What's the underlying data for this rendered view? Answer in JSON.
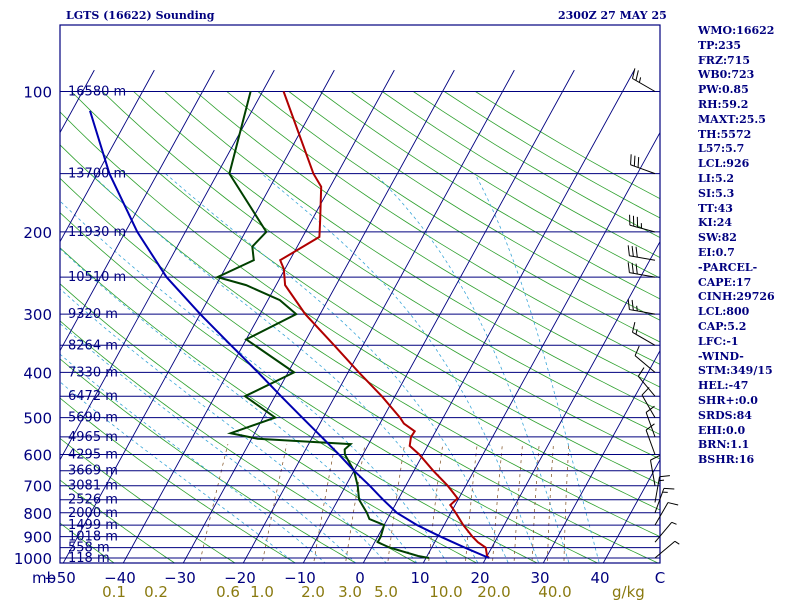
{
  "header": {
    "station": "LGTS (16622) Sounding",
    "time": "2300Z 27 MAY 25"
  },
  "indices": [
    "WMO:16622",
    "TP:235",
    "FRZ:715",
    "WB0:723",
    "PW:0.85",
    "RH:59.2",
    "MAXT:25.5",
    "TH:5572",
    "L57:5.7",
    "LCL:926",
    "LI:5.2",
    "SI:5.3",
    "TT:43",
    "KI:24",
    "SW:82",
    "EI:0.7",
    "-PARCEL-",
    "CAPE:17",
    "CINH:29726",
    "LCL:800",
    "CAP:5.2",
    "LFC:-1",
    "-WIND-",
    "STM:349/15",
    "HEL:-47",
    "SHR+:0.0",
    "SRDS:84",
    "EHI:0.0",
    "BRN:1.1",
    "BSHR:16"
  ],
  "chart_data": {
    "type": "line",
    "chart_kind": "skew-T log-P sounding",
    "y_scale": "log",
    "ylim": [
      1000,
      100
    ],
    "xlim": [
      -50,
      50
    ],
    "xlabel_unit": "mb",
    "pressure_ticks": [
      "100",
      "200",
      "300",
      "400",
      "500",
      "600",
      "700",
      "800",
      "900",
      "1000"
    ],
    "temperature_ticks": [
      "−50",
      "−40",
      "−30",
      "−20",
      "−10",
      "0",
      "10",
      "20",
      "30",
      "40",
      "C"
    ],
    "mixing_ratio_ticks": [
      "0.1",
      "0.2",
      "0.6",
      "1.0",
      "2.0",
      "3.0",
      "5.0",
      "10.0",
      "20.0",
      "40.0"
    ],
    "mixing_ratio_unit": "g/kg",
    "height_labels": [
      {
        "p": 100,
        "label": "16580 m"
      },
      {
        "p": 150,
        "label": "13700 m"
      },
      {
        "p": 200,
        "label": "11930 m"
      },
      {
        "p": 250,
        "label": "10510 m"
      },
      {
        "p": 300,
        "label": "9320 m"
      },
      {
        "p": 350,
        "label": "8264 m"
      },
      {
        "p": 400,
        "label": "7330 m"
      },
      {
        "p": 450,
        "label": "6472 m"
      },
      {
        "p": 500,
        "label": "5690 m"
      },
      {
        "p": 550,
        "label": "4965 m"
      },
      {
        "p": 600,
        "label": "4295 m"
      },
      {
        "p": 650,
        "label": "3669 m"
      },
      {
        "p": 700,
        "label": "3081 m"
      },
      {
        "p": 750,
        "label": "2526 m"
      },
      {
        "p": 800,
        "label": "2000 m"
      },
      {
        "p": 850,
        "label": "1499 m"
      },
      {
        "p": 900,
        "label": "1018 m"
      },
      {
        "p": 950,
        "label": "558 m"
      },
      {
        "p": 1000,
        "label": "118 m"
      }
    ],
    "series": [
      {
        "role": "temperature",
        "color": "#b00000",
        "points": [
          {
            "p": 1000,
            "t": 20.5
          },
          {
            "p": 990,
            "t": 20.0
          },
          {
            "p": 950,
            "t": 19.0
          },
          {
            "p": 925,
            "t": 17.2
          },
          {
            "p": 900,
            "t": 15.8
          },
          {
            "p": 850,
            "t": 13.2
          },
          {
            "p": 800,
            "t": 10.8
          },
          {
            "p": 770,
            "t": 9.2
          },
          {
            "p": 745,
            "t": 9.8
          },
          {
            "p": 700,
            "t": 7.0
          },
          {
            "p": 650,
            "t": 3.2
          },
          {
            "p": 600,
            "t": -0.6
          },
          {
            "p": 575,
            "t": -3.0
          },
          {
            "p": 550,
            "t": -3.6
          },
          {
            "p": 535,
            "t": -3.5
          },
          {
            "p": 515,
            "t": -6.0
          },
          {
            "p": 500,
            "t": -7.2
          },
          {
            "p": 450,
            "t": -12.2
          },
          {
            "p": 400,
            "t": -18.2
          },
          {
            "p": 350,
            "t": -24.8
          },
          {
            "p": 300,
            "t": -32.5
          },
          {
            "p": 260,
            "t": -38.5
          },
          {
            "p": 240,
            "t": -40.2
          },
          {
            "p": 230,
            "t": -41.6
          },
          {
            "p": 205,
            "t": -37.2
          },
          {
            "p": 190,
            "t": -38.5
          },
          {
            "p": 160,
            "t": -41.5
          },
          {
            "p": 150,
            "t": -44.0
          },
          {
            "p": 100,
            "t": -56.5
          }
        ]
      },
      {
        "role": "dewpoint",
        "color": "#004000",
        "points": [
          {
            "p": 1000,
            "t": 10.5
          },
          {
            "p": 990,
            "t": 8.5
          },
          {
            "p": 950,
            "t": 3.0
          },
          {
            "p": 925,
            "t": 0.5
          },
          {
            "p": 900,
            "t": 0.5
          },
          {
            "p": 850,
            "t": 0.0
          },
          {
            "p": 825,
            "t": -3.0
          },
          {
            "p": 800,
            "t": -4.0
          },
          {
            "p": 750,
            "t": -6.5
          },
          {
            "p": 700,
            "t": -8.0
          },
          {
            "p": 650,
            "t": -10.0
          },
          {
            "p": 600,
            "t": -13.0
          },
          {
            "p": 585,
            "t": -13.5
          },
          {
            "p": 570,
            "t": -13.0
          },
          {
            "p": 555,
            "t": -29.0
          },
          {
            "p": 540,
            "t": -34.0
          },
          {
            "p": 500,
            "t": -28.0
          },
          {
            "p": 450,
            "t": -35.0
          },
          {
            "p": 400,
            "t": -29.0
          },
          {
            "p": 340,
            "t": -40.0
          },
          {
            "p": 300,
            "t": -34.0
          },
          {
            "p": 280,
            "t": -38.0
          },
          {
            "p": 260,
            "t": -45.0
          },
          {
            "p": 250,
            "t": -50.5
          },
          {
            "p": 230,
            "t": -46.0
          },
          {
            "p": 215,
            "t": -47.5
          },
          {
            "p": 200,
            "t": -46.5
          },
          {
            "p": 150,
            "t": -58.0
          },
          {
            "p": 100,
            "t": -62.0
          }
        ]
      },
      {
        "role": "parcel",
        "color": "#0000b0",
        "points": [
          {
            "p": 1000,
            "t": 20.5
          },
          {
            "p": 950,
            "t": 15.5
          },
          {
            "p": 900,
            "t": 10.5
          },
          {
            "p": 850,
            "t": 5.5
          },
          {
            "p": 800,
            "t": 1.0
          },
          {
            "p": 750,
            "t": -2.5
          },
          {
            "p": 700,
            "t": -6.0
          },
          {
            "p": 650,
            "t": -10.0
          },
          {
            "p": 600,
            "t": -14.0
          },
          {
            "p": 550,
            "t": -18.5
          },
          {
            "p": 500,
            "t": -23.5
          },
          {
            "p": 450,
            "t": -29.0
          },
          {
            "p": 400,
            "t": -35.0
          },
          {
            "p": 350,
            "t": -42.0
          },
          {
            "p": 300,
            "t": -50.0
          },
          {
            "p": 250,
            "t": -59.0
          },
          {
            "p": 200,
            "t": -68.0
          },
          {
            "p": 150,
            "t": -78.0
          },
          {
            "p": 110,
            "t": -87.0
          }
        ]
      }
    ],
    "wind_barbs": [
      {
        "p": 100,
        "dir": 300,
        "speed": 25
      },
      {
        "p": 150,
        "dir": 290,
        "speed": 30
      },
      {
        "p": 200,
        "dir": 285,
        "speed": 35
      },
      {
        "p": 230,
        "dir": 280,
        "speed": 30
      },
      {
        "p": 250,
        "dir": 280,
        "speed": 30
      },
      {
        "p": 300,
        "dir": 280,
        "speed": 25
      },
      {
        "p": 350,
        "dir": 300,
        "speed": 15
      },
      {
        "p": 400,
        "dir": 310,
        "speed": 10
      },
      {
        "p": 450,
        "dir": 320,
        "speed": 10
      },
      {
        "p": 500,
        "dir": 330,
        "speed": 10
      },
      {
        "p": 550,
        "dir": 340,
        "speed": 10
      },
      {
        "p": 600,
        "dir": 340,
        "speed": 10
      },
      {
        "p": 700,
        "dir": 350,
        "speed": 10
      },
      {
        "p": 760,
        "dir": 10,
        "speed": 15
      },
      {
        "p": 800,
        "dir": 20,
        "speed": 15
      },
      {
        "p": 850,
        "dir": 30,
        "speed": 10
      },
      {
        "p": 925,
        "dir": 40,
        "speed": 5
      },
      {
        "p": 1000,
        "dir": 50,
        "speed": 5
      }
    ],
    "colors": {
      "frame": "#00007f",
      "isotherm": "#00007f",
      "isobar": "#00007f",
      "dry_adiabat": "#2ea02e",
      "moist_adiabat": "#3aa6d8",
      "mixing_ratio": "#7a4a1a",
      "mixing_ratio_label": "#8a7a10",
      "height_label": "#00007f"
    }
  }
}
